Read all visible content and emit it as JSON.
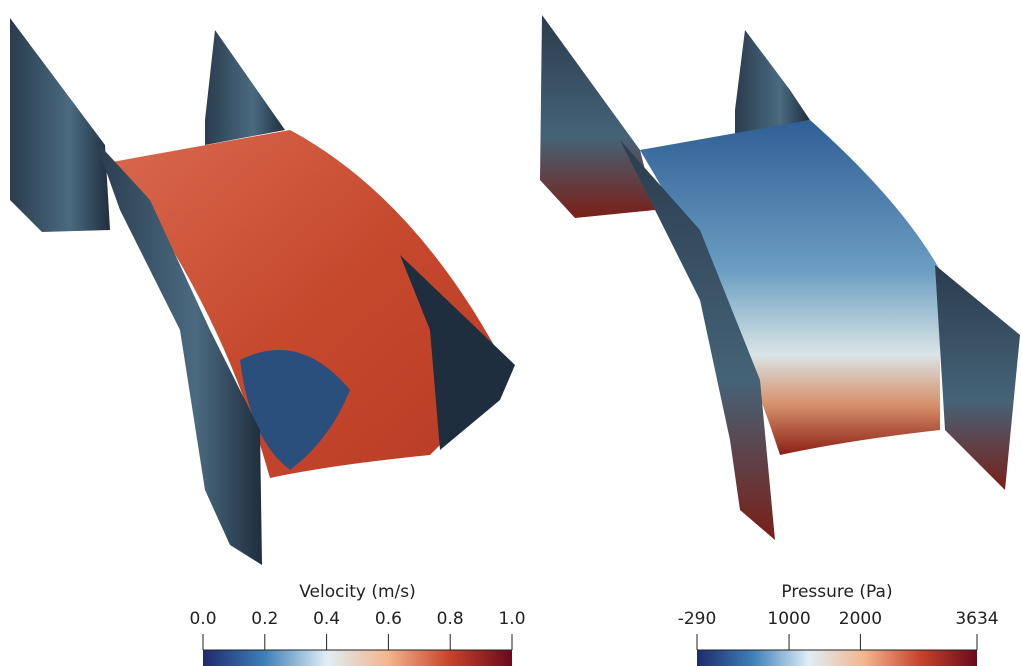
{
  "chart_data": [
    {
      "type": "colorbar",
      "title": "Velocity (m/s)",
      "xlim": [
        0,
        1
      ],
      "xticks": [
        {
          "value": 0,
          "label": "0.0"
        },
        0.2,
        0.4,
        0.6,
        0.8,
        {
          "value": 1,
          "label": "1.0"
        }
      ],
      "colors": [
        "#1f2a6b",
        "#3f7fb8",
        "#dfeef5",
        "#f2b48c",
        "#c6422b",
        "#6a0a1c"
      ]
    },
    {
      "type": "colorbar",
      "title": "Pressure (Pa)",
      "xlim": [
        -290,
        3634
      ],
      "xticks": [
        -290,
        1000,
        2000,
        3634
      ],
      "colors": [
        "#1f2a6b",
        "#3f7fb8",
        "#dfeef5",
        "#f2b48c",
        "#c6422b",
        "#6a0a1c"
      ]
    }
  ]
}
